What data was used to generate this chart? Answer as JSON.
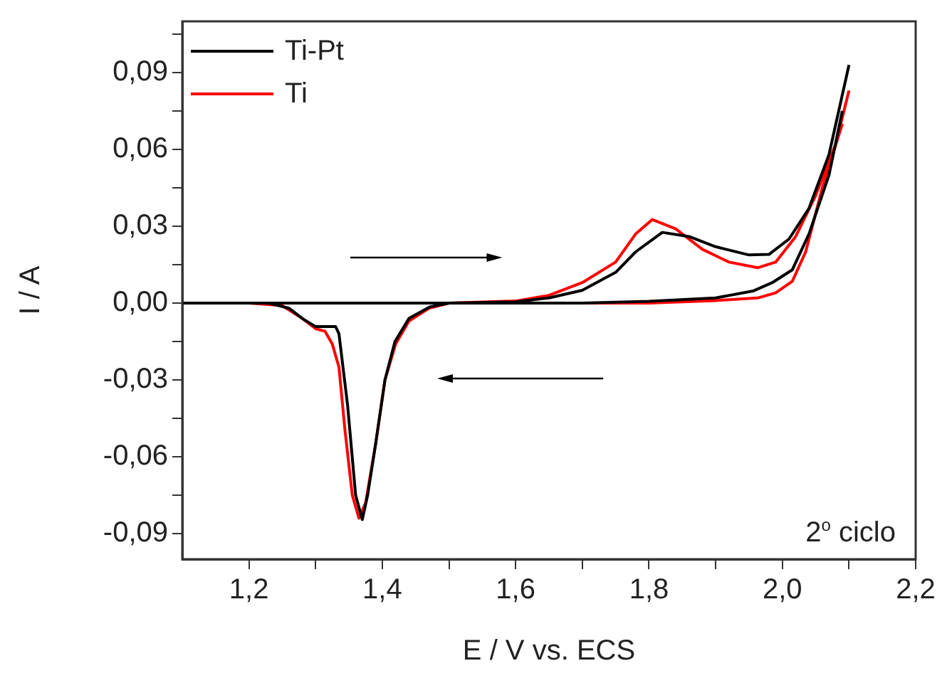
{
  "chart_data": {
    "type": "line",
    "xlabel": "E / V vs. ECS",
    "ylabel": "I / A",
    "xlim": [
      1.1,
      2.2
    ],
    "ylim": [
      -0.1,
      0.11
    ],
    "xticks": [
      {
        "value": 1.2,
        "label": "1,2"
      },
      {
        "value": 1.3,
        "label": null
      },
      {
        "value": 1.4,
        "label": "1,4"
      },
      {
        "value": 1.5,
        "label": null
      },
      {
        "value": 1.6,
        "label": "1,6"
      },
      {
        "value": 1.7,
        "label": null
      },
      {
        "value": 1.8,
        "label": "1,8"
      },
      {
        "value": 1.9,
        "label": null
      },
      {
        "value": 2.0,
        "label": "2,0"
      },
      {
        "value": 2.1,
        "label": null
      },
      {
        "value": 2.2,
        "label": "2,2"
      }
    ],
    "yticks": [
      {
        "value": -0.09,
        "label": "-0,09"
      },
      {
        "value": -0.075,
        "label": null
      },
      {
        "value": -0.06,
        "label": "-0,06"
      },
      {
        "value": -0.045,
        "label": null
      },
      {
        "value": -0.03,
        "label": "-0,03"
      },
      {
        "value": -0.015,
        "label": null
      },
      {
        "value": 0,
        "label": "0,00"
      },
      {
        "value": 0.015,
        "label": null
      },
      {
        "value": 0.03,
        "label": "0,03"
      },
      {
        "value": 0.045,
        "label": null
      },
      {
        "value": 0.06,
        "label": "0,06"
      },
      {
        "value": 0.075,
        "label": null
      },
      {
        "value": 0.09,
        "label": "0,09"
      },
      {
        "value": 0.105,
        "label": null
      }
    ],
    "legend": "top left",
    "marker": "none",
    "line_style": "solid",
    "annotations": [
      "2$^{o}$ ciclo"
    ],
    "series": [
      {
        "name": "Ti-Pt",
        "color": "#000000",
        "x": [
          1.1,
          1.3,
          1.5,
          1.6,
          1.65,
          1.7,
          1.75,
          1.78,
          1.82,
          1.86,
          1.9,
          1.95,
          1.98,
          2.01,
          2.04,
          2.07,
          2.1
        ],
        "values": [
          0,
          0,
          0,
          0.0005,
          0.002,
          0.005,
          0.012,
          0.02,
          0.0276,
          0.026,
          0.022,
          0.0188,
          0.019,
          0.025,
          0.037,
          0.058,
          0.093
        ]
      },
      {
        "color": "#000000",
        "x": [
          1.1,
          1.2,
          1.23,
          1.26,
          1.28,
          1.3,
          1.315,
          1.33,
          1.335,
          1.348,
          1.36,
          1.37,
          1.378,
          1.39,
          1.404,
          1.419,
          1.44,
          1.471,
          1.5,
          1.6,
          1.7,
          1.8,
          1.9,
          1.956,
          1.985,
          2.015,
          2.04,
          2.07,
          2.09
        ],
        "values": [
          0,
          0,
          0,
          -0.002,
          -0.006,
          -0.0092,
          -0.0092,
          -0.0092,
          -0.012,
          -0.04,
          -0.075,
          -0.0845,
          -0.075,
          -0.055,
          -0.03,
          -0.015,
          -0.006,
          -0.0015,
          0,
          0,
          0,
          0.0007,
          0.002,
          0.0047,
          0.008,
          0.013,
          0.027,
          0.05,
          0.075
        ]
      },
      {
        "name": "Ti",
        "color": "#ff0000",
        "x": [
          1.1,
          1.3,
          1.5,
          1.6,
          1.65,
          1.7,
          1.75,
          1.78,
          1.805,
          1.84,
          1.88,
          1.92,
          1.963,
          1.99,
          2.02,
          2.05,
          2.08,
          2.1
        ],
        "values": [
          0,
          0,
          0,
          0.0008,
          0.003,
          0.008,
          0.016,
          0.027,
          0.0326,
          0.029,
          0.021,
          0.016,
          0.0138,
          0.016,
          0.026,
          0.042,
          0.062,
          0.083
        ]
      },
      {
        "color": "#ff0000",
        "x": [
          1.1,
          1.2,
          1.25,
          1.28,
          1.3,
          1.314,
          1.325,
          1.335,
          1.344,
          1.355,
          1.365,
          1.375,
          1.39,
          1.404,
          1.42,
          1.44,
          1.47,
          1.5,
          1.6,
          1.7,
          1.8,
          1.9,
          1.963,
          1.99,
          2.015,
          2.035,
          2.06,
          2.09
        ],
        "values": [
          0,
          0,
          -0.001,
          -0.006,
          -0.01,
          -0.011,
          -0.016,
          -0.025,
          -0.0496,
          -0.075,
          -0.084,
          -0.078,
          -0.055,
          -0.03,
          -0.016,
          -0.007,
          -0.002,
          0,
          0,
          0,
          0,
          0.001,
          0.002,
          0.004,
          0.0085,
          0.02,
          0.045,
          0.07
        ]
      }
    ]
  }
}
